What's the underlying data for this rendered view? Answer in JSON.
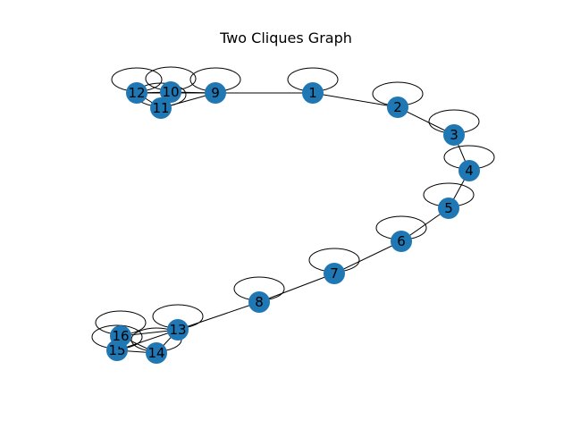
{
  "title": "Two Cliques Graph",
  "node_color": "#1f77b4",
  "edge_color": "#000000",
  "nodes": [
    "1",
    "2",
    "3",
    "4",
    "5",
    "6",
    "7",
    "8",
    "9",
    "10",
    "11",
    "12",
    "13",
    "14",
    "15",
    "16"
  ],
  "edges": [
    [
      "9",
      "10"
    ],
    [
      "9",
      "11"
    ],
    [
      "9",
      "12"
    ],
    [
      "10",
      "11"
    ],
    [
      "10",
      "12"
    ],
    [
      "11",
      "12"
    ],
    [
      "9",
      "1"
    ],
    [
      "1",
      "2"
    ],
    [
      "2",
      "3"
    ],
    [
      "3",
      "4"
    ],
    [
      "4",
      "5"
    ],
    [
      "5",
      "6"
    ],
    [
      "6",
      "7"
    ],
    [
      "7",
      "8"
    ],
    [
      "8",
      "13"
    ],
    [
      "13",
      "14"
    ],
    [
      "13",
      "15"
    ],
    [
      "13",
      "16"
    ],
    [
      "14",
      "15"
    ],
    [
      "14",
      "16"
    ],
    [
      "15",
      "16"
    ]
  ],
  "self_loops": [
    "1",
    "2",
    "3",
    "4",
    "5",
    "6",
    "7",
    "8",
    "9",
    "10",
    "11",
    "12",
    "13",
    "14",
    "15",
    "16"
  ]
}
